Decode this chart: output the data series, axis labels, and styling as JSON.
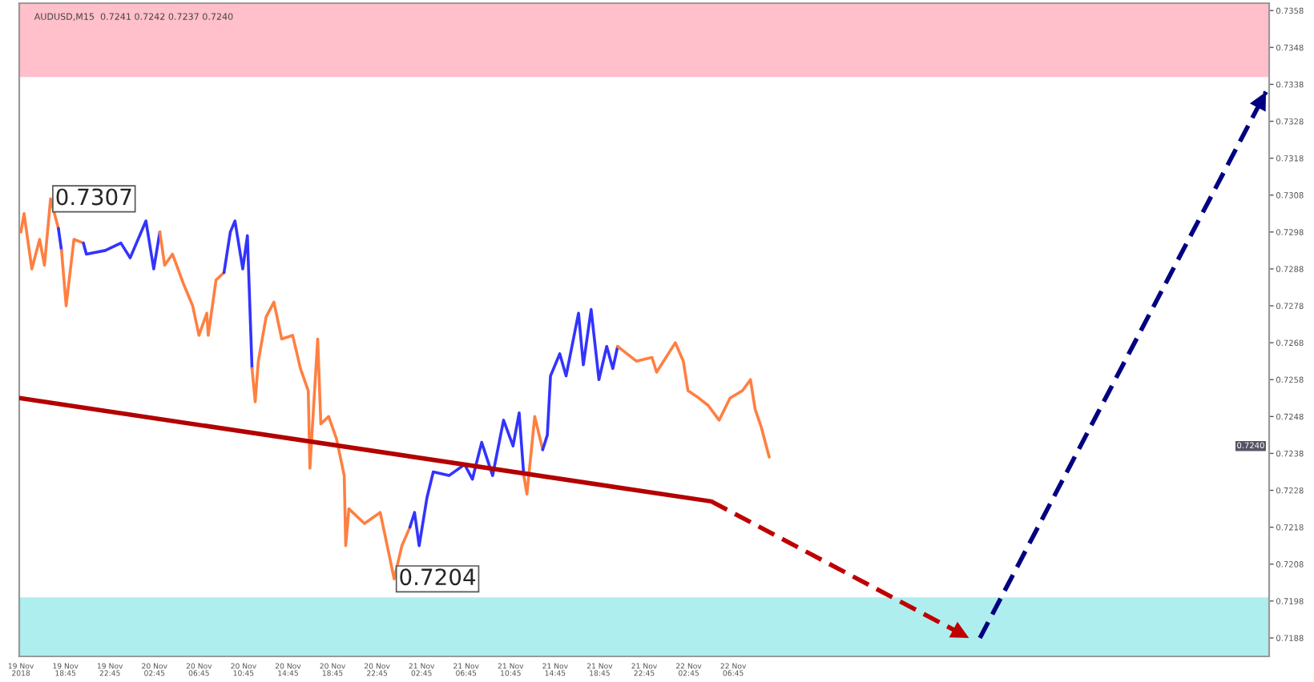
{
  "chart_data": {
    "type": "line",
    "title": "AUDUSD,M15  0.7241 0.7242 0.7237 0.7240",
    "xlim": [
      "2018-11-19T14:36",
      "2018-11-24T06:54"
    ],
    "ylim": [
      0.7183,
      0.736
    ],
    "xticks": [
      {
        "value": "2018-11-19T14:45",
        "label": "19 Nov 2018"
      },
      {
        "value": "2018-11-19T18:45",
        "label": "19 Nov 18:45"
      },
      {
        "value": "2018-11-19T22:45",
        "label": "19 Nov 22:45"
      },
      {
        "value": "2018-11-20T02:45",
        "label": "20 Nov 02:45"
      },
      {
        "value": "2018-11-20T06:45",
        "label": "20 Nov 06:45"
      },
      {
        "value": "2018-11-20T10:45",
        "label": "20 Nov 10:45"
      },
      {
        "value": "2018-11-20T14:45",
        "label": "20 Nov 14:45"
      },
      {
        "value": "2018-11-20T18:45",
        "label": "20 Nov 18:45"
      },
      {
        "value": "2018-11-20T22:45",
        "label": "20 Nov 22:45"
      },
      {
        "value": "2018-11-21T02:45",
        "label": "21 Nov 02:45"
      },
      {
        "value": "2018-11-21T06:45",
        "label": "21 Nov 06:45"
      },
      {
        "value": "2018-11-21T10:45",
        "label": "21 Nov 10:45"
      },
      {
        "value": "2018-11-21T14:45",
        "label": "21 Nov 14:45"
      },
      {
        "value": "2018-11-21T18:45",
        "label": "21 Nov 18:45"
      },
      {
        "value": "2018-11-21T22:45",
        "label": "21 Nov 22:45"
      },
      {
        "value": "2018-11-22T02:45",
        "label": "22 Nov 02:45"
      },
      {
        "value": "2018-11-22T06:45",
        "label": "22 Nov 06:45"
      }
    ],
    "yticks": [
      0.7188,
      0.7198,
      0.7208,
      0.7218,
      0.7228,
      0.7238,
      0.7248,
      0.7258,
      0.7268,
      0.7278,
      0.7288,
      0.7298,
      0.7308,
      0.7318,
      0.7328,
      0.7338,
      0.7348,
      0.7358
    ],
    "grid": false,
    "legend": false,
    "bands": [
      {
        "axis": "y",
        "from": 0.734,
        "to": 0.736,
        "color": "#ffc0cb"
      },
      {
        "axis": "y",
        "from": 0.7183,
        "to": 0.7199,
        "color": "#afeeee"
      }
    ],
    "series": [
      {
        "color": "#ff7f41",
        "x": [
          "2018-11-19T14:45",
          "2018-11-19T15:02",
          "2018-11-19T15:44",
          "2018-11-19T16:26",
          "2018-11-19T16:52",
          "2018-11-19T17:25",
          "2018-11-19T18:07"
        ],
        "values": [
          0.7298,
          0.7303,
          0.7288,
          0.7296,
          0.7289,
          0.7307,
          0.7299
        ]
      },
      {
        "color": "#3333ff",
        "x": [
          "2018-11-19T18:07",
          "2018-11-19T18:24"
        ],
        "values": [
          0.7299,
          0.7293
        ]
      },
      {
        "color": "#ff7f41",
        "x": [
          "2018-11-19T18:24",
          "2018-11-19T18:49",
          "2018-11-19T19:31",
          "2018-11-19T20:22"
        ],
        "values": [
          0.7293,
          0.7278,
          0.7296,
          0.7295
        ]
      },
      {
        "color": "#3333ff",
        "x": [
          "2018-11-19T20:22",
          "2018-11-19T20:38",
          "2018-11-19T22:20",
          "2018-11-19T23:44",
          "2018-11-20T00:34",
          "2018-11-20T01:59",
          "2018-11-20T02:41",
          "2018-11-20T03:14"
        ],
        "values": [
          0.7295,
          0.7292,
          0.7293,
          0.7295,
          0.7291,
          0.7301,
          0.7288,
          0.7298
        ]
      },
      {
        "color": "#ff7f41",
        "x": [
          "2018-11-20T03:14",
          "2018-11-20T03:40",
          "2018-11-20T04:22",
          "2018-11-20T05:21",
          "2018-11-20T06:11",
          "2018-11-20T06:45",
          "2018-11-20T07:27",
          "2018-11-20T07:35",
          "2018-11-20T08:17",
          "2018-11-20T09:00"
        ],
        "values": [
          0.7298,
          0.7289,
          0.7292,
          0.7284,
          0.7278,
          0.727,
          0.7276,
          0.727,
          0.7285,
          0.7287
        ]
      },
      {
        "color": "#3333ff",
        "x": [
          "2018-11-20T09:00",
          "2018-11-20T09:34",
          "2018-11-20T09:59",
          "2018-11-20T10:41",
          "2018-11-20T11:06",
          "2018-11-20T11:31"
        ],
        "values": [
          0.7287,
          0.7298,
          0.7301,
          0.7288,
          0.7297,
          0.7261
        ]
      },
      {
        "color": "#ff7f41",
        "x": [
          "2018-11-20T11:31",
          "2018-11-20T11:48",
          "2018-11-20T12:05",
          "2018-11-20T12:47",
          "2018-11-20T13:29",
          "2018-11-20T14:11",
          "2018-11-20T15:10",
          "2018-11-20T15:52",
          "2018-11-20T16:34",
          "2018-11-20T16:43",
          "2018-11-20T17:25",
          "2018-11-20T17:42",
          "2018-11-20T18:24",
          "2018-11-20T19:06",
          "2018-11-20T19:48",
          "2018-11-20T19:56",
          "2018-11-20T20:13",
          "2018-11-20T21:37",
          "2018-11-20T23:02",
          "2018-11-20T23:44",
          "2018-11-21T00:17",
          "2018-11-21T00:59",
          "2018-11-21T01:42"
        ],
        "values": [
          0.7261,
          0.7252,
          0.7263,
          0.7275,
          0.7279,
          0.7269,
          0.727,
          0.7261,
          0.7255,
          0.7234,
          0.7269,
          0.7246,
          0.7248,
          0.7242,
          0.7232,
          0.7213,
          0.7223,
          0.7219,
          0.7222,
          0.7212,
          0.7204,
          0.7213,
          0.7218
        ]
      },
      {
        "color": "#3333ff",
        "x": [
          "2018-11-21T01:42",
          "2018-11-21T02:07",
          "2018-11-21T02:32",
          "2018-11-21T03:14",
          "2018-11-21T03:48",
          "2018-11-21T05:13",
          "2018-11-21T06:37",
          "2018-11-21T07:19",
          "2018-11-21T08:09",
          "2018-11-21T09:08",
          "2018-11-21T10:07",
          "2018-11-21T10:58",
          "2018-11-21T11:31",
          "2018-11-21T11:56"
        ],
        "values": [
          0.7218,
          0.7222,
          0.7213,
          0.7226,
          0.7233,
          0.7232,
          0.7235,
          0.7231,
          0.7241,
          0.7232,
          0.7247,
          0.724,
          0.7249,
          0.7232
        ]
      },
      {
        "color": "#ff7f41",
        "x": [
          "2018-11-21T11:56",
          "2018-11-21T12:13",
          "2018-11-21T12:55",
          "2018-11-21T13:38"
        ],
        "values": [
          0.7232,
          0.7227,
          0.7248,
          0.7239
        ]
      },
      {
        "color": "#3333ff",
        "x": [
          "2018-11-21T13:38",
          "2018-11-21T14:03",
          "2018-11-21T14:20",
          "2018-11-21T15:10",
          "2018-11-21T15:44",
          "2018-11-21T16:51",
          "2018-11-21T17:17",
          "2018-11-21T17:59",
          "2018-11-21T18:41",
          "2018-11-21T19:23",
          "2018-11-21T19:56",
          "2018-11-21T20:22"
        ],
        "values": [
          0.7239,
          0.7243,
          0.7259,
          0.7265,
          0.7259,
          0.7276,
          0.7262,
          0.7277,
          0.7258,
          0.7267,
          0.7261,
          0.7267
        ]
      },
      {
        "color": "#ff7f41",
        "x": [
          "2018-11-21T20:22",
          "2018-11-21T20:47",
          "2018-11-21T22:03",
          "2018-11-21T23:27",
          "2018-11-21T23:52",
          "2018-11-22T01:33",
          "2018-11-22T02:16",
          "2018-11-22T02:41",
          "2018-11-22T03:40",
          "2018-11-22T04:30",
          "2018-11-22T05:29",
          "2018-11-22T06:28",
          "2018-11-22T07:35",
          "2018-11-22T08:18",
          "2018-11-22T08:43",
          "2018-11-22T09:17",
          "2018-11-22T09:59"
        ],
        "values": [
          0.7267,
          0.7266,
          0.7263,
          0.7264,
          0.726,
          0.7268,
          0.7263,
          0.7255,
          0.7253,
          0.7251,
          0.7247,
          0.7253,
          0.7255,
          0.7258,
          0.725,
          0.7245,
          0.7237
        ]
      },
      {
        "color": "#b30000",
        "x": [
          "2018-11-19T14:36",
          "2018-11-22T04:47"
        ],
        "values": [
          0.7253,
          0.7225
        ],
        "line_style": "solid"
      },
      {
        "color": "#c00000",
        "x": [
          "2018-11-22T04:47",
          "2018-11-23T03:56"
        ],
        "values": [
          0.7225,
          0.7188
        ],
        "line_style": "dashed"
      },
      {
        "color": "#000080",
        "x": [
          "2018-11-23T04:55",
          "2018-11-24T06:37"
        ],
        "values": [
          0.7188,
          0.7336
        ],
        "line_style": "dashed"
      }
    ],
    "annotations": [
      {
        "text": "0.7307",
        "x": "2018-11-19T17:25",
        "y": 0.7307
      },
      {
        "text": "0.7204",
        "x": "2018-11-21T00:17",
        "y": 0.7204
      },
      {
        "text": "0.7240",
        "y": 0.724
      }
    ]
  }
}
